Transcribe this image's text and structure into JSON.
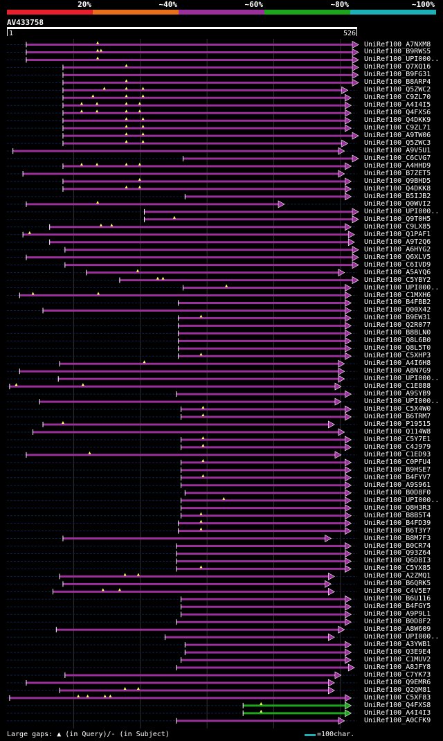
{
  "query_name": "AV433758",
  "query_length_label_start": "1",
  "query_length_label_end": "526",
  "query_length": 526,
  "identity_scale": [
    {
      "label": "20%",
      "color": "#e8202e"
    },
    {
      "label": "~40%",
      "color": "#e8701a"
    },
    {
      "label": "~60%",
      "color": "#9b2f9b"
    },
    {
      "label": "~80%",
      "color": "#1ea51e"
    },
    {
      "label": "~100%",
      "color": "#1cb0b8"
    }
  ],
  "colors": {
    "background": "#000000",
    "hit": "#9b2f9b",
    "hit_high": "#1ea51e",
    "gridline": "#333333",
    "ruler": "#ffffff"
  },
  "footer": {
    "legend": "Large gaps: ▲ (in Query)/- (in Subject)",
    "scale_label": "=100char.",
    "scale_color": "#1cb0b8"
  },
  "chart_data": {
    "type": "alignment",
    "title": "AV433758",
    "x_range": [
      1,
      526
    ],
    "hits": [
      {
        "label": "UniRef100_A7NXM8",
        "start": 30,
        "end": 526,
        "color": "#9b2f9b",
        "marks": [
          137
        ]
      },
      {
        "label": "UniRef100_B9RWS5",
        "start": 30,
        "end": 526,
        "color": "#9b2f9b",
        "marks": [
          137,
          142
        ]
      },
      {
        "label": "UniRef100_UPI000..",
        "start": 30,
        "end": 526,
        "color": "#9b2f9b",
        "marks": [
          137
        ]
      },
      {
        "label": "UniRef100_Q7XQ16",
        "start": 85,
        "end": 526,
        "color": "#9b2f9b",
        "marks": [
          180
        ]
      },
      {
        "label": "UniRef100_B9FG31",
        "start": 85,
        "end": 526,
        "color": "#9b2f9b",
        "marks": []
      },
      {
        "label": "UniRef100_B8ARP4",
        "start": 85,
        "end": 526,
        "color": "#9b2f9b",
        "marks": [
          180
        ]
      },
      {
        "label": "UniRef100_Q5ZWC2",
        "start": 85,
        "end": 510,
        "color": "#9b2f9b",
        "marks": [
          147,
          180,
          205
        ]
      },
      {
        "label": "UniRef100_C9ZL70",
        "start": 85,
        "end": 515,
        "color": "#9b2f9b",
        "marks": [
          130,
          180,
          205
        ]
      },
      {
        "label": "UniRef100_A4I4I5",
        "start": 85,
        "end": 515,
        "color": "#9b2f9b",
        "marks": [
          113,
          136,
          180,
          200
        ]
      },
      {
        "label": "UniRef100_Q4FXS6",
        "start": 85,
        "end": 515,
        "color": "#9b2f9b",
        "marks": [
          113,
          136,
          180,
          200
        ]
      },
      {
        "label": "UniRef100_Q4DKK9",
        "start": 85,
        "end": 515,
        "color": "#9b2f9b",
        "marks": [
          180,
          205
        ]
      },
      {
        "label": "UniRef100_C9ZL71",
        "start": 85,
        "end": 515,
        "color": "#9b2f9b",
        "marks": [
          180,
          205
        ]
      },
      {
        "label": "UniRef100_A9TW06",
        "start": 85,
        "end": 526,
        "color": "#9b2f9b",
        "marks": [
          180,
          205
        ]
      },
      {
        "label": "UniRef100_Q5ZWC3",
        "start": 85,
        "end": 510,
        "color": "#9b2f9b",
        "marks": [
          180,
          205
        ]
      },
      {
        "label": "UniRef100_A9V5U1",
        "start": 10,
        "end": 505,
        "color": "#9b2f9b",
        "marks": []
      },
      {
        "label": "UniRef100_C6CVG7",
        "start": 265,
        "end": 526,
        "color": "#9b2f9b",
        "marks": []
      },
      {
        "label": "UniRef100_A4HHD9",
        "start": 85,
        "end": 515,
        "color": "#9b2f9b",
        "marks": [
          113,
          136,
          180,
          200
        ]
      },
      {
        "label": "UniRef100_B7ZET5",
        "start": 25,
        "end": 505,
        "color": "#9b2f9b",
        "marks": []
      },
      {
        "label": "UniRef100_Q9BHD5",
        "start": 85,
        "end": 515,
        "color": "#9b2f9b",
        "marks": [
          200
        ]
      },
      {
        "label": "UniRef100_Q4DKK8",
        "start": 85,
        "end": 515,
        "color": "#9b2f9b",
        "marks": [
          180,
          200
        ]
      },
      {
        "label": "UniRef100_B5IJB2",
        "start": 268,
        "end": 515,
        "color": "#9b2f9b",
        "marks": []
      },
      {
        "label": "UniRef100_Q0WVI2",
        "start": 30,
        "end": 415,
        "color": "#9b2f9b",
        "marks": [
          137
        ]
      },
      {
        "label": "UniRef100_UPI000..",
        "start": 207,
        "end": 526,
        "color": "#9b2f9b",
        "marks": []
      },
      {
        "label": "UniRef100_Q9T0H5",
        "start": 207,
        "end": 526,
        "color": "#9b2f9b",
        "marks": [
          252
        ]
      },
      {
        "label": "UniRef100_C9LX85",
        "start": 65,
        "end": 515,
        "color": "#9b2f9b",
        "marks": [
          142,
          158
        ]
      },
      {
        "label": "UniRef100_Q1PAF1",
        "start": 25,
        "end": 520,
        "color": "#9b2f9b",
        "marks": [
          35
        ]
      },
      {
        "label": "UniRef100_A9T2Q6",
        "start": 65,
        "end": 520,
        "color": "#9b2f9b",
        "marks": []
      },
      {
        "label": "UniRef100_A6HYG2",
        "start": 88,
        "end": 526,
        "color": "#9b2f9b",
        "marks": []
      },
      {
        "label": "UniRef100_Q6XLV5",
        "start": 30,
        "end": 526,
        "color": "#9b2f9b",
        "marks": []
      },
      {
        "label": "UniRef100_C6IVD9",
        "start": 88,
        "end": 526,
        "color": "#9b2f9b",
        "marks": []
      },
      {
        "label": "UniRef100_A5AYQ6",
        "start": 120,
        "end": 505,
        "color": "#9b2f9b",
        "marks": [
          197
        ]
      },
      {
        "label": "UniRef100_C5YBY2",
        "start": 170,
        "end": 526,
        "color": "#9b2f9b",
        "marks": [
          227,
          235
        ]
      },
      {
        "label": "UniRef100_UPI000..",
        "start": 265,
        "end": 515,
        "color": "#9b2f9b",
        "marks": [
          330
        ]
      },
      {
        "label": "UniRef100_C1MXH6",
        "start": 20,
        "end": 515,
        "color": "#9b2f9b",
        "marks": [
          40,
          138
        ]
      },
      {
        "label": "UniRef100_B4FBB2",
        "start": 258,
        "end": 515,
        "color": "#9b2f9b",
        "marks": []
      },
      {
        "label": "UniRef100_Q00X42",
        "start": 55,
        "end": 515,
        "color": "#9b2f9b",
        "marks": []
      },
      {
        "label": "UniRef100_B9EW31",
        "start": 258,
        "end": 515,
        "color": "#9b2f9b",
        "marks": [
          292
        ]
      },
      {
        "label": "UniRef100_Q2R077",
        "start": 258,
        "end": 515,
        "color": "#9b2f9b",
        "marks": []
      },
      {
        "label": "UniRef100_B8BLN0",
        "start": 258,
        "end": 515,
        "color": "#9b2f9b",
        "marks": []
      },
      {
        "label": "UniRef100_Q8L6B0",
        "start": 258,
        "end": 515,
        "color": "#9b2f9b",
        "marks": []
      },
      {
        "label": "UniRef100_Q8L5T0",
        "start": 258,
        "end": 515,
        "color": "#9b2f9b",
        "marks": []
      },
      {
        "label": "UniRef100_C5XHP3",
        "start": 258,
        "end": 515,
        "color": "#9b2f9b",
        "marks": [
          292
        ]
      },
      {
        "label": "UniRef100_A4I6H8",
        "start": 80,
        "end": 505,
        "color": "#9b2f9b",
        "marks": [
          207
        ]
      },
      {
        "label": "UniRef100_A8N7G9",
        "start": 20,
        "end": 505,
        "color": "#9b2f9b",
        "marks": []
      },
      {
        "label": "UniRef100_UPI000..",
        "start": 78,
        "end": 505,
        "color": "#9b2f9b",
        "marks": []
      },
      {
        "label": "UniRef100_C1E888",
        "start": 5,
        "end": 500,
        "color": "#9b2f9b",
        "marks": [
          15,
          115
        ]
      },
      {
        "label": "UniRef100_A9SYB9",
        "start": 255,
        "end": 515,
        "color": "#9b2f9b",
        "marks": []
      },
      {
        "label": "UniRef100_UPI000..",
        "start": 50,
        "end": 500,
        "color": "#9b2f9b",
        "marks": []
      },
      {
        "label": "UniRef100_C5X4W0",
        "start": 262,
        "end": 515,
        "color": "#9b2f9b",
        "marks": [
          295
        ]
      },
      {
        "label": "UniRef100_B6TRM7",
        "start": 262,
        "end": 515,
        "color": "#9b2f9b",
        "marks": [
          295
        ]
      },
      {
        "label": "UniRef100_P19515",
        "start": 55,
        "end": 490,
        "color": "#9b2f9b",
        "marks": [
          85
        ]
      },
      {
        "label": "UniRef100_Q114W8",
        "start": 40,
        "end": 505,
        "color": "#9b2f9b",
        "marks": []
      },
      {
        "label": "UniRef100_C5Y7E1",
        "start": 262,
        "end": 515,
        "color": "#9b2f9b",
        "marks": [
          295
        ]
      },
      {
        "label": "UniRef100_C4J979",
        "start": 262,
        "end": 515,
        "color": "#9b2f9b",
        "marks": [
          295
        ]
      },
      {
        "label": "UniRef100_C1ED93",
        "start": 30,
        "end": 500,
        "color": "#9b2f9b",
        "marks": [
          125
        ]
      },
      {
        "label": "UniRef100_C0PFU4",
        "start": 262,
        "end": 515,
        "color": "#9b2f9b",
        "marks": [
          295
        ]
      },
      {
        "label": "UniRef100_B9HSE7",
        "start": 262,
        "end": 515,
        "color": "#9b2f9b",
        "marks": []
      },
      {
        "label": "UniRef100_B4FYV7",
        "start": 262,
        "end": 515,
        "color": "#9b2f9b",
        "marks": [
          295
        ]
      },
      {
        "label": "UniRef100_A9S961",
        "start": 262,
        "end": 515,
        "color": "#9b2f9b",
        "marks": []
      },
      {
        "label": "UniRef100_B0D8F0",
        "start": 268,
        "end": 515,
        "color": "#9b2f9b",
        "marks": []
      },
      {
        "label": "UniRef100_UPI000..",
        "start": 262,
        "end": 515,
        "color": "#9b2f9b",
        "marks": [
          326
        ]
      },
      {
        "label": "UniRef100_Q8H3R3",
        "start": 262,
        "end": 515,
        "color": "#9b2f9b",
        "marks": []
      },
      {
        "label": "UniRef100_B8B5T4",
        "start": 262,
        "end": 515,
        "color": "#9b2f9b",
        "marks": [
          292
        ]
      },
      {
        "label": "UniRef100_B4FD39",
        "start": 258,
        "end": 515,
        "color": "#9b2f9b",
        "marks": [
          292
        ]
      },
      {
        "label": "UniRef100_B6T3Y7",
        "start": 258,
        "end": 515,
        "color": "#9b2f9b",
        "marks": [
          292
        ]
      },
      {
        "label": "UniRef100_B8M7F3",
        "start": 85,
        "end": 485,
        "color": "#9b2f9b",
        "marks": []
      },
      {
        "label": "UniRef100_B0CR74",
        "start": 255,
        "end": 515,
        "color": "#9b2f9b",
        "marks": []
      },
      {
        "label": "UniRef100_Q93Z64",
        "start": 255,
        "end": 515,
        "color": "#9b2f9b",
        "marks": []
      },
      {
        "label": "UniRef100_Q6DBI3",
        "start": 255,
        "end": 515,
        "color": "#9b2f9b",
        "marks": []
      },
      {
        "label": "UniRef100_C5YX85",
        "start": 255,
        "end": 515,
        "color": "#9b2f9b",
        "marks": [
          292
        ]
      },
      {
        "label": "UniRef100_A2ZMQ1",
        "start": 80,
        "end": 490,
        "color": "#9b2f9b",
        "marks": [
          178,
          198
        ]
      },
      {
        "label": "UniRef100_B6QRK5",
        "start": 85,
        "end": 485,
        "color": "#9b2f9b",
        "marks": []
      },
      {
        "label": "UniRef100_C4V5E7",
        "start": 70,
        "end": 490,
        "color": "#9b2f9b",
        "marks": [
          145,
          170
        ]
      },
      {
        "label": "UniRef100_B6U116",
        "start": 262,
        "end": 515,
        "color": "#9b2f9b",
        "marks": []
      },
      {
        "label": "UniRef100_B4FGY5",
        "start": 262,
        "end": 515,
        "color": "#9b2f9b",
        "marks": []
      },
      {
        "label": "UniRef100_A9P9L1",
        "start": 262,
        "end": 515,
        "color": "#9b2f9b",
        "marks": []
      },
      {
        "label": "UniRef100_B0D8F2",
        "start": 255,
        "end": 515,
        "color": "#9b2f9b",
        "marks": []
      },
      {
        "label": "UniRef100_A8W609",
        "start": 75,
        "end": 505,
        "color": "#9b2f9b",
        "marks": []
      },
      {
        "label": "UniRef100_UPI000..",
        "start": 238,
        "end": 490,
        "color": "#9b2f9b",
        "marks": []
      },
      {
        "label": "UniRef100_A3YWB1",
        "start": 268,
        "end": 515,
        "color": "#9b2f9b",
        "marks": []
      },
      {
        "label": "UniRef100_Q3E9E4",
        "start": 268,
        "end": 515,
        "color": "#9b2f9b",
        "marks": []
      },
      {
        "label": "UniRef100_C1MUV2",
        "start": 262,
        "end": 515,
        "color": "#9b2f9b",
        "marks": []
      },
      {
        "label": "UniRef100_A8JFY8",
        "start": 255,
        "end": 520,
        "color": "#9b2f9b",
        "marks": []
      },
      {
        "label": "UniRef100_C7YK73",
        "start": 88,
        "end": 500,
        "color": "#9b2f9b",
        "marks": []
      },
      {
        "label": "UniRef100_Q9EMR6",
        "start": 30,
        "end": 490,
        "color": "#9b2f9b",
        "marks": []
      },
      {
        "label": "UniRef100_Q2QM81",
        "start": 80,
        "end": 490,
        "color": "#9b2f9b",
        "marks": [
          178,
          198
        ]
      },
      {
        "label": "UniRef100_C5XF83",
        "start": 5,
        "end": 515,
        "color": "#9b2f9b",
        "marks": [
          108,
          122,
          148,
          156
        ]
      },
      {
        "label": "UniRef100_Q4FXS8",
        "start": 355,
        "end": 515,
        "color": "#1ea51e",
        "marks": [
          382
        ]
      },
      {
        "label": "UniRef100_A4I4I3",
        "start": 355,
        "end": 515,
        "color": "#1ea51e",
        "marks": [
          382
        ]
      },
      {
        "label": "UniRef100_A0CFK9",
        "start": 255,
        "end": 505,
        "color": "#9b2f9b",
        "marks": []
      }
    ]
  }
}
